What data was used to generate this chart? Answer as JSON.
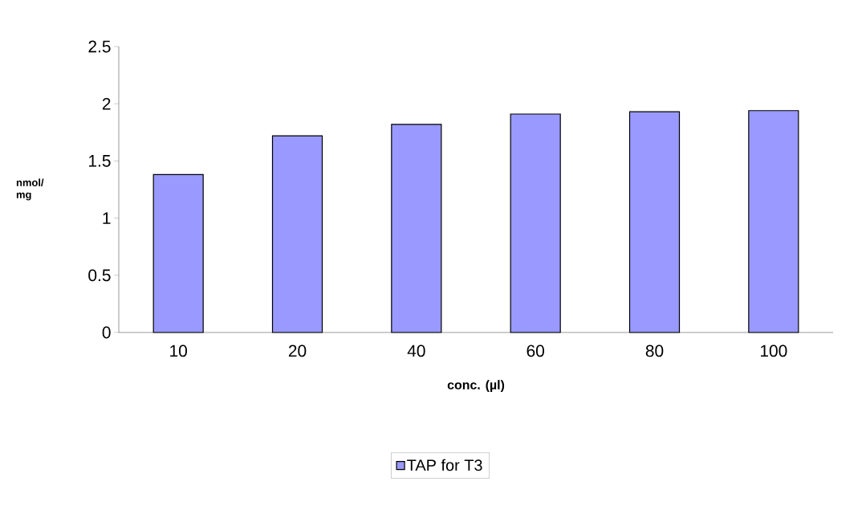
{
  "chart_data": {
    "type": "bar",
    "xlabel": "conc. (µl)",
    "ylabel": "nmol/ mg",
    "categories": [
      "10",
      "20",
      "40",
      "60",
      "80",
      "100"
    ],
    "series": [
      {
        "name": "TAP for T3",
        "color": "#9999ff",
        "values": [
          1.38,
          1.72,
          1.82,
          1.91,
          1.93,
          1.94
        ]
      }
    ],
    "ylim": [
      0,
      2.5
    ],
    "yticks": [
      0,
      0.5,
      1,
      1.5,
      2,
      2.5
    ],
    "grid": false,
    "legend": "bottom"
  }
}
